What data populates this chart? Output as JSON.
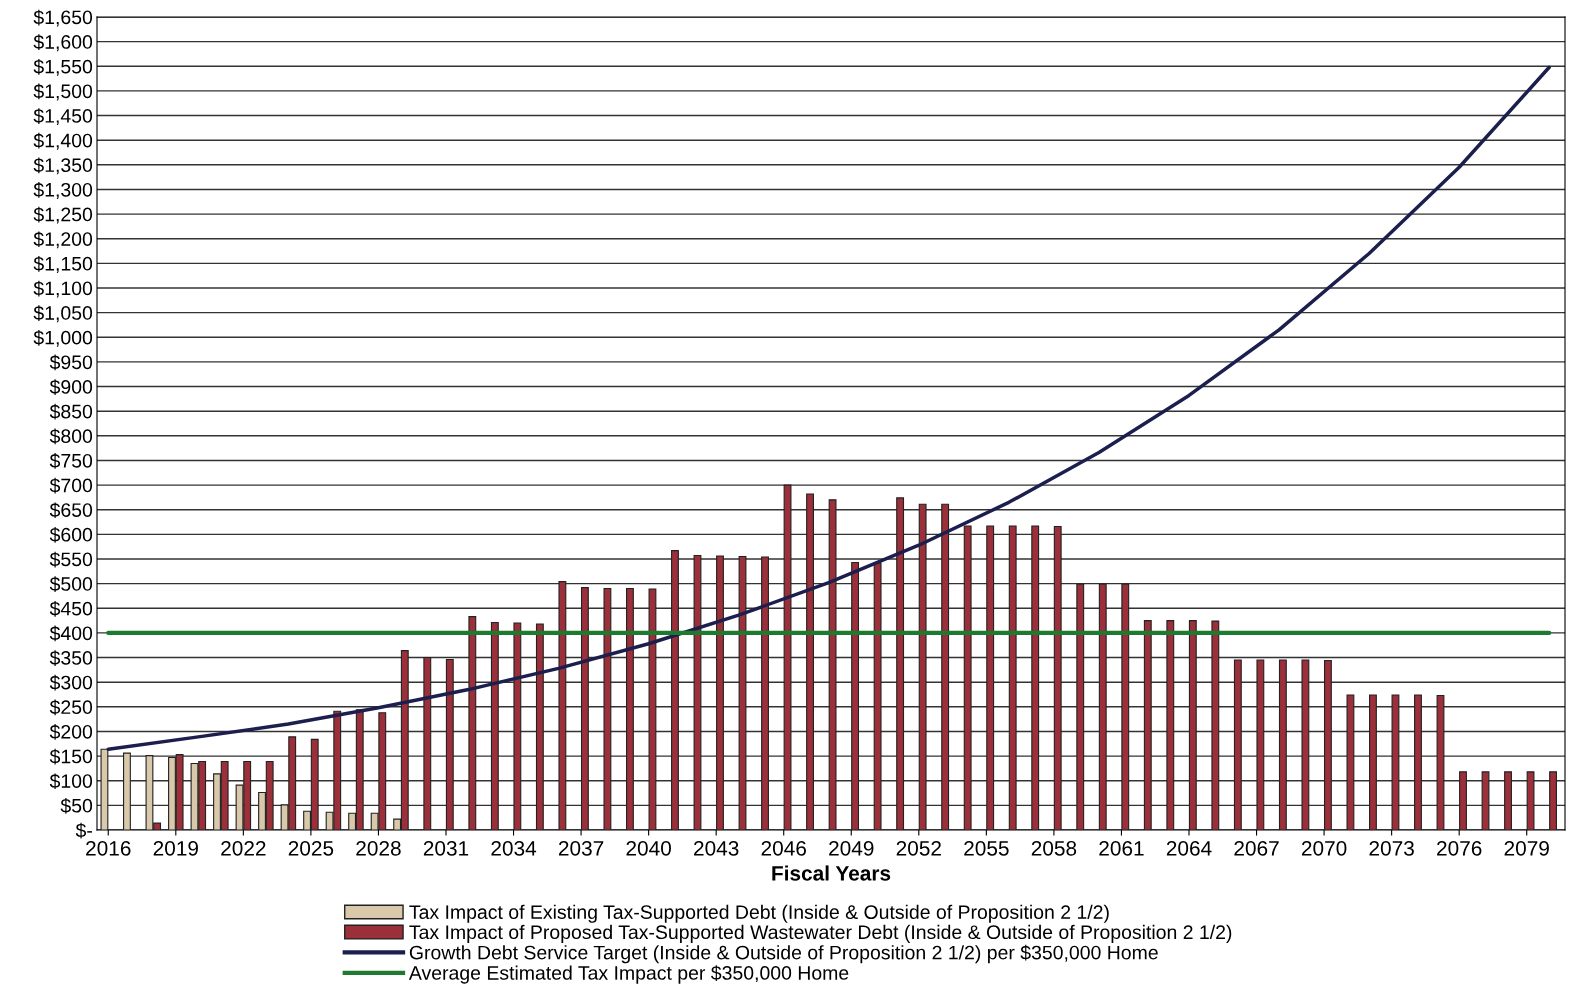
{
  "chart_data": {
    "type": "bar",
    "xlabel": "Fiscal Years",
    "x": [
      2016,
      2017,
      2018,
      2019,
      2020,
      2021,
      2022,
      2023,
      2024,
      2025,
      2026,
      2027,
      2028,
      2029,
      2030,
      2031,
      2032,
      2033,
      2034,
      2035,
      2036,
      2037,
      2038,
      2039,
      2040,
      2041,
      2042,
      2043,
      2044,
      2045,
      2046,
      2047,
      2048,
      2049,
      2050,
      2051,
      2052,
      2053,
      2054,
      2055,
      2056,
      2057,
      2058,
      2059,
      2060,
      2061,
      2062,
      2063,
      2064,
      2065,
      2066,
      2067,
      2068,
      2069,
      2070,
      2071,
      2072,
      2073,
      2074,
      2075,
      2076,
      2077,
      2078,
      2079,
      2080
    ],
    "series": [
      {
        "name": "Tax Impact of Existing Tax-Supported Debt (Inside & Outside of Proposition 2 1/2)",
        "color": "#d9c8a9",
        "values": [
          164,
          156,
          151,
          147,
          135,
          114,
          91,
          76,
          51,
          38,
          36,
          34,
          34,
          22,
          null,
          null,
          null,
          null,
          null,
          null,
          null,
          null,
          null,
          null,
          null,
          null,
          null,
          null,
          null,
          null,
          null,
          null,
          null,
          null,
          null,
          null,
          null,
          null,
          null,
          null,
          null,
          null,
          null,
          null,
          null,
          null,
          null,
          null,
          null,
          null,
          null,
          null,
          null,
          null,
          null,
          null,
          null,
          null,
          null,
          null,
          null,
          null,
          null,
          null,
          null
        ]
      },
      {
        "name": "Tax Impact of Proposed Tax-Supported Wastewater Debt (Inside & Outside of Proposition 2 1/2)",
        "color": "#9b2f3a",
        "values": [
          null,
          null,
          14,
          153,
          139,
          139,
          139,
          139,
          189,
          184,
          241,
          244,
          238,
          364,
          350,
          346,
          433,
          421,
          420,
          418,
          504,
          492,
          490,
          490,
          489,
          567,
          557,
          556,
          555,
          554,
          700,
          682,
          670,
          543,
          542,
          674,
          661,
          661,
          617,
          617,
          617,
          617,
          616,
          499,
          499,
          499,
          425,
          425,
          425,
          424,
          345,
          345,
          345,
          345,
          344,
          274,
          274,
          274,
          274,
          273,
          118,
          118,
          118,
          118,
          118
        ]
      },
      {
        "name": "Growth Debt Service Target (Inside & Outside of Proposition 2 1/2) per $350,000 Home",
        "type": "line",
        "color": "#1c1f4e",
        "x": [
          2016,
          2020,
          2024,
          2028,
          2032,
          2036,
          2040,
          2044,
          2048,
          2052,
          2056,
          2060,
          2064,
          2068,
          2072,
          2076,
          2080
        ],
        "values": [
          164,
          189,
          215,
          248,
          285,
          328,
          378,
          436,
          502,
          578,
          665,
          766,
          882,
          1015,
          1170,
          1345,
          1548
        ]
      },
      {
        "name": "Average Estimated Tax Impact per $350,000 Home",
        "type": "line",
        "color": "#1e7a2e",
        "x": [
          2016,
          2080
        ],
        "values": [
          400,
          400
        ]
      }
    ],
    "xlim": [
      2015.5,
      2080.7
    ],
    "xticks": [
      2016,
      2019,
      2022,
      2025,
      2028,
      2031,
      2034,
      2037,
      2040,
      2043,
      2046,
      2049,
      2052,
      2055,
      2058,
      2061,
      2064,
      2067,
      2070,
      2073,
      2076,
      2079
    ],
    "ylim": [
      0,
      1650
    ],
    "yticks": [
      {
        "value": 0,
        "label": "$-"
      },
      {
        "value": 50,
        "label": "$50"
      },
      {
        "value": 100,
        "label": "$100"
      },
      {
        "value": 150,
        "label": "$150"
      },
      {
        "value": 200,
        "label": "$200"
      },
      {
        "value": 250,
        "label": "$250"
      },
      {
        "value": 300,
        "label": "$300"
      },
      {
        "value": 350,
        "label": "$350"
      },
      {
        "value": 400,
        "label": "$400"
      },
      {
        "value": 450,
        "label": "$450"
      },
      {
        "value": 500,
        "label": "$500"
      },
      {
        "value": 550,
        "label": "$550"
      },
      {
        "value": 600,
        "label": "$600"
      },
      {
        "value": 650,
        "label": "$650"
      },
      {
        "value": 700,
        "label": "$700"
      },
      {
        "value": 750,
        "label": "$750"
      },
      {
        "value": 800,
        "label": "$800"
      },
      {
        "value": 850,
        "label": "$850"
      },
      {
        "value": 900,
        "label": "$900"
      },
      {
        "value": 950,
        "label": "$950"
      },
      {
        "value": 1000,
        "label": "$1,000"
      },
      {
        "value": 1050,
        "label": "$1,050"
      },
      {
        "value": 1100,
        "label": "$1,100"
      },
      {
        "value": 1150,
        "label": "$1,150"
      },
      {
        "value": 1200,
        "label": "$1,200"
      },
      {
        "value": 1250,
        "label": "$1,250"
      },
      {
        "value": 1300,
        "label": "$1,300"
      },
      {
        "value": 1350,
        "label": "$1,350"
      },
      {
        "value": 1400,
        "label": "$1,400"
      },
      {
        "value": 1450,
        "label": "$1,450"
      },
      {
        "value": 1500,
        "label": "$1,500"
      },
      {
        "value": 1550,
        "label": "$1,550"
      },
      {
        "value": 1600,
        "label": "$1,600"
      },
      {
        "value": 1650,
        "label": "$1,650"
      }
    ],
    "grid": "y",
    "legend": "bottom"
  }
}
